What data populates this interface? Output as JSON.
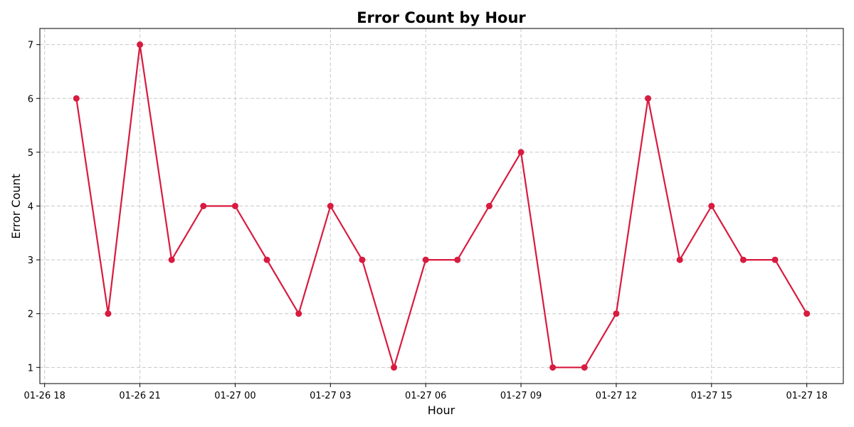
{
  "chart_data": {
    "type": "line",
    "title": "Error Count by Hour",
    "xlabel": "Hour",
    "ylabel": "Error Count",
    "x": [
      "2024-01-26T19:00",
      "2024-01-26T20:00",
      "2024-01-26T21:00",
      "2024-01-26T22:00",
      "2024-01-26T23:00",
      "2024-01-27T00:00",
      "2024-01-27T01:00",
      "2024-01-27T02:00",
      "2024-01-27T03:00",
      "2024-01-27T04:00",
      "2024-01-27T05:00",
      "2024-01-27T06:00",
      "2024-01-27T07:00",
      "2024-01-27T08:00",
      "2024-01-27T09:00",
      "2024-01-27T10:00",
      "2024-01-27T11:00",
      "2024-01-27T12:00",
      "2024-01-27T13:00",
      "2024-01-27T14:00",
      "2024-01-27T15:00",
      "2024-01-27T16:00",
      "2024-01-27T17:00",
      "2024-01-27T18:00"
    ],
    "series": [
      {
        "values": [
          6,
          2,
          7,
          3,
          4,
          4,
          3,
          2,
          4,
          3,
          1,
          3,
          3,
          4,
          5,
          1,
          1,
          2,
          6,
          3,
          4,
          3,
          3,
          2
        ],
        "color": "#d81b3f",
        "marker": "circle"
      }
    ],
    "xlim": [
      "2024-01-26T17:51",
      "2024-01-27T19:09"
    ],
    "ylim": [
      0.7,
      7.3
    ],
    "xticks": [
      {
        "value": "2024-01-26T18:00",
        "label": "01-26 18"
      },
      {
        "value": "2024-01-26T21:00",
        "label": "01-26 21"
      },
      {
        "value": "2024-01-27T00:00",
        "label": "01-27 00"
      },
      {
        "value": "2024-01-27T03:00",
        "label": "01-27 03"
      },
      {
        "value": "2024-01-27T06:00",
        "label": "01-27 06"
      },
      {
        "value": "2024-01-27T09:00",
        "label": "01-27 09"
      },
      {
        "value": "2024-01-27T12:00",
        "label": "01-27 12"
      },
      {
        "value": "2024-01-27T15:00",
        "label": "01-27 15"
      },
      {
        "value": "2024-01-27T18:00",
        "label": "01-27 18"
      }
    ],
    "yticks": [
      1,
      2,
      3,
      4,
      5,
      6,
      7
    ],
    "grid": true,
    "grid_color": "#c8c8c8",
    "legend": false
  }
}
